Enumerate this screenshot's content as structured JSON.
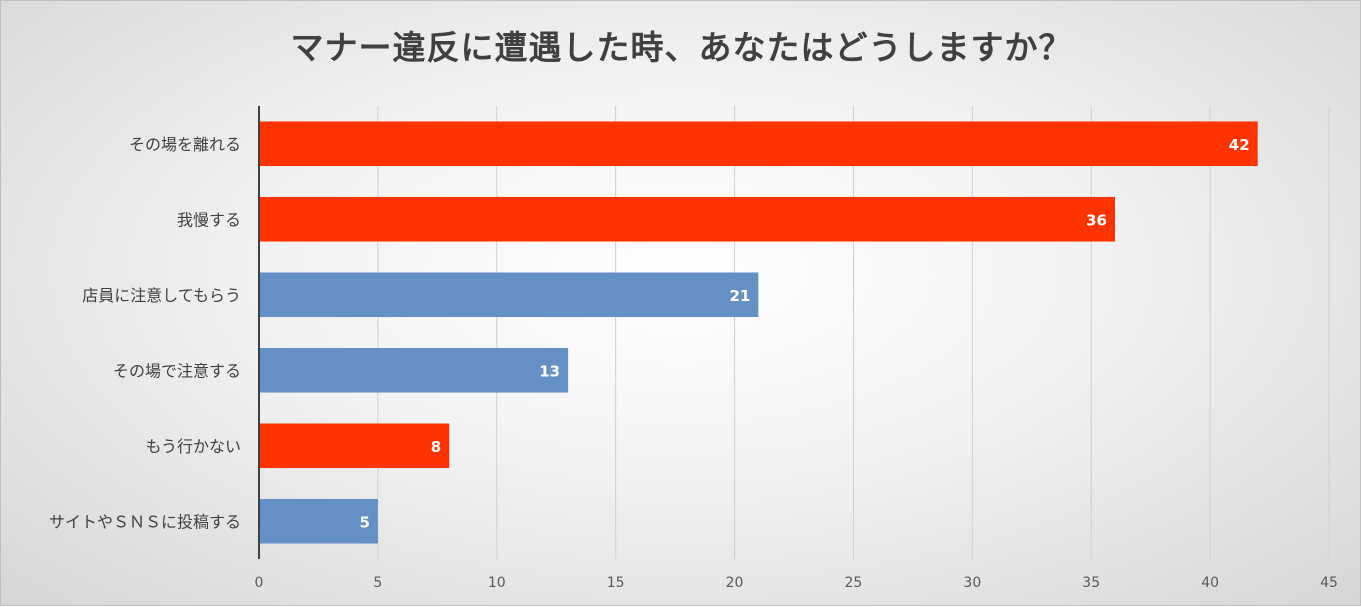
{
  "chart_data": {
    "type": "bar",
    "orientation": "horizontal",
    "title": "マナー違反に遭遇した時、あなたはどうしますか？",
    "categories": [
      "その場を離れる",
      "我慢する",
      "店員に注意してもらう",
      "その場で注意する",
      "もう行かない",
      "サイトやＳＮＳに投稿する"
    ],
    "values": [
      42,
      36,
      21,
      13,
      8,
      5
    ],
    "bar_colors": [
      "#ff3300",
      "#ff3300",
      "#6590c5",
      "#6590c5",
      "#ff3300",
      "#6590c5"
    ],
    "xlim": [
      0,
      45
    ],
    "xticks": [
      "0",
      "5",
      "10",
      "15",
      "20",
      "25",
      "30",
      "35",
      "40",
      "45"
    ],
    "grid": true,
    "data_labels": true,
    "legend": "none"
  }
}
